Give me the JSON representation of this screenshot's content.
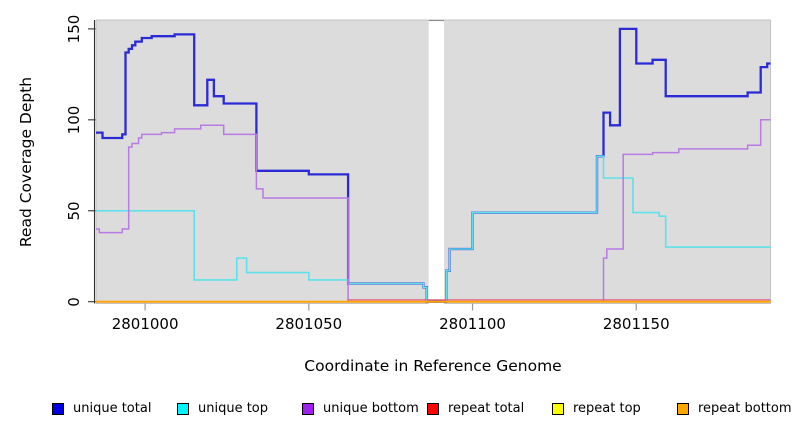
{
  "chart_data": {
    "type": "line",
    "title": "",
    "xlabel": "Coordinate in Reference Genome",
    "ylabel": "Read Coverage Depth",
    "xlim": [
      2800985,
      2801191
    ],
    "ylim": [
      0,
      155
    ],
    "x_ticks": [
      {
        "value": 2801000,
        "label": "2801000"
      },
      {
        "value": 2801050,
        "label": "2801050"
      },
      {
        "value": 2801100,
        "label": "2801100"
      },
      {
        "value": 2801150,
        "label": "2801150"
      }
    ],
    "y_ticks": [
      {
        "value": 0,
        "label": "0"
      },
      {
        "value": 50,
        "label": "50"
      },
      {
        "value": 100,
        "label": "100"
      },
      {
        "value": 150,
        "label": "150"
      }
    ],
    "panel_bg": "#dcdcdc",
    "gap": {
      "from": 2801086.6,
      "to": 2801091.3
    },
    "interpolation": "step-after",
    "legend_position": "bottom",
    "grid": false,
    "series": [
      {
        "name": "unique total",
        "color": "#2b2bd5",
        "legend_color": "#0000e0",
        "width": 2.3,
        "points": [
          [
            2800985,
            93
          ],
          [
            2800987,
            90
          ],
          [
            2800993,
            92
          ],
          [
            2800994,
            137
          ],
          [
            2800995,
            139
          ],
          [
            2800996,
            141
          ],
          [
            2800997,
            143
          ],
          [
            2800999,
            145
          ],
          [
            2801002,
            146
          ],
          [
            2801009,
            147
          ],
          [
            2801015,
            108
          ],
          [
            2801019,
            122
          ],
          [
            2801021,
            113
          ],
          [
            2801024,
            109
          ],
          [
            2801034,
            72
          ],
          [
            2801050,
            70
          ],
          [
            2801062,
            10
          ],
          [
            2801085,
            8
          ],
          [
            2801086,
            0
          ],
          [
            2801092,
            17
          ],
          [
            2801093,
            29
          ],
          [
            2801100,
            49
          ],
          [
            2801138,
            80
          ],
          [
            2801140,
            104
          ],
          [
            2801142,
            97
          ],
          [
            2801145,
            150
          ],
          [
            2801150,
            131
          ],
          [
            2801155,
            133
          ],
          [
            2801159,
            113
          ],
          [
            2801184,
            115
          ],
          [
            2801188,
            129
          ],
          [
            2801190,
            131
          ],
          [
            2801191,
            131
          ]
        ]
      },
      {
        "name": "unique top",
        "color": "#5fe0ea",
        "legend_color": "#00f5ff",
        "width": 1.6,
        "points": [
          [
            2800985,
            50
          ],
          [
            2801015,
            12
          ],
          [
            2801028,
            24
          ],
          [
            2801031,
            16
          ],
          [
            2801050,
            12
          ],
          [
            2801062,
            10
          ],
          [
            2801085,
            8
          ],
          [
            2801086,
            0
          ],
          [
            2801092,
            17
          ],
          [
            2801093,
            29
          ],
          [
            2801100,
            49
          ],
          [
            2801138,
            80
          ],
          [
            2801140,
            68
          ],
          [
            2801149,
            49
          ],
          [
            2801157,
            47
          ],
          [
            2801159,
            30
          ],
          [
            2801191,
            30
          ]
        ]
      },
      {
        "name": "unique bottom",
        "color": "#b87ae3",
        "legend_color": "#a020f0",
        "width": 1.5,
        "points": [
          [
            2800985,
            40
          ],
          [
            2800986,
            38
          ],
          [
            2800993,
            40
          ],
          [
            2800995,
            85
          ],
          [
            2800996,
            87
          ],
          [
            2800998,
            90
          ],
          [
            2800999,
            92
          ],
          [
            2801005,
            93
          ],
          [
            2801009,
            95
          ],
          [
            2801017,
            97
          ],
          [
            2801024,
            92
          ],
          [
            2801034,
            62
          ],
          [
            2801036,
            57
          ],
          [
            2801062,
            0
          ],
          [
            2801140,
            24
          ],
          [
            2801141,
            29
          ],
          [
            2801146,
            81
          ],
          [
            2801155,
            82
          ],
          [
            2801163,
            84
          ],
          [
            2801184,
            86
          ],
          [
            2801188,
            100
          ],
          [
            2801191,
            100
          ]
        ]
      },
      {
        "name": "repeat total",
        "color": "#e0607e",
        "legend_color": "#ff0000",
        "width": 1.3,
        "points": [
          [
            2800985,
            0
          ],
          [
            2801062,
            1
          ],
          [
            2801191,
            1
          ]
        ]
      },
      {
        "name": "repeat top",
        "color": "#f7f734",
        "legend_color": "#ffff00",
        "width": 1.2,
        "points": [
          [
            2800985,
            0
          ],
          [
            2801191,
            0
          ]
        ]
      },
      {
        "name": "repeat bottom",
        "color": "#ffa407",
        "legend_color": "#ffa500",
        "width": 2.0,
        "points": [
          [
            2800985,
            0
          ],
          [
            2801191,
            0
          ]
        ]
      }
    ]
  }
}
